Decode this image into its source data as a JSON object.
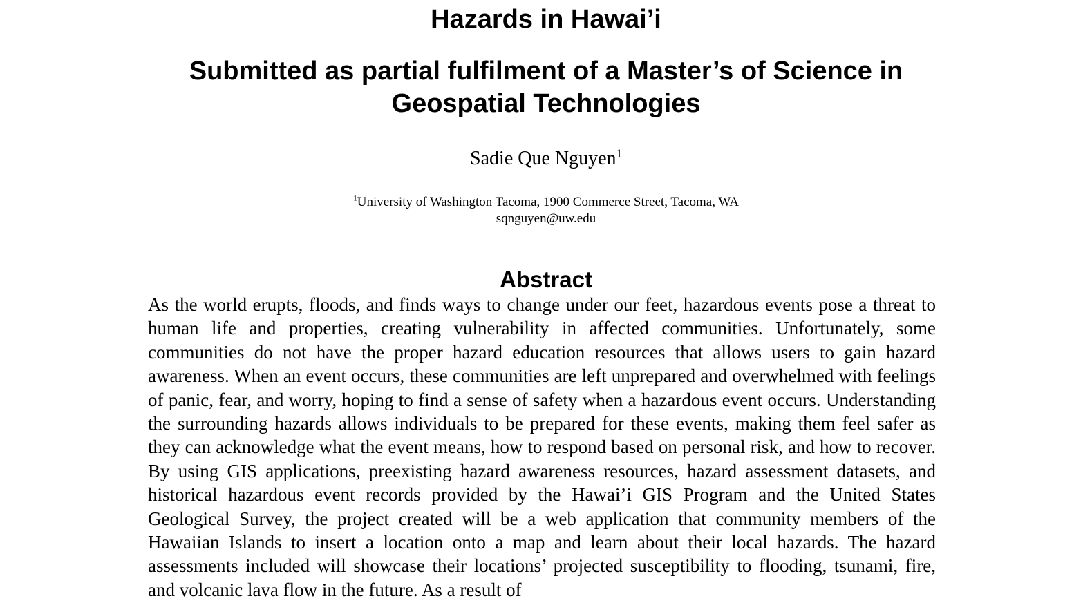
{
  "paper": {
    "title": "Hazards in Hawai’i",
    "subtitle_line1": "Submitted as partial fulfilment of a Master’s of Science in",
    "subtitle_line2": "Geospatial Technologies",
    "author": {
      "name": "Sadie Que Nguyen",
      "marker": "1"
    },
    "affiliation": {
      "marker": "1",
      "text": "University of Washington Tacoma, 1900 Commerce Street, Tacoma, WA",
      "email": "sqnguyen@uw.edu"
    },
    "abstract": {
      "heading": "Abstract",
      "body": "As the world erupts, floods, and finds ways to change under our feet, hazardous events pose a threat to human life and properties, creating vulnerability in affected communities. Unfortunately, some communities do not have the proper hazard education resources that allows users to gain hazard awareness. When an event occurs, these communities are left unprepared and overwhelmed with feelings of panic, fear, and worry, hoping to find a sense of safety when a hazardous event occurs. Understanding the surrounding hazards allows individuals to be prepared for these events, making them feel safer as they can acknowledge what the event means, how to respond based on personal risk, and how to recover. By using GIS applications, preexisting hazard awareness resources, hazard assessment datasets, and historical hazardous event records provided by the Hawai’i GIS Program and the United States Geological Survey, the project created will be a web application that community members of the Hawaiian Islands to insert a location onto a map and learn about their local hazards. The hazard assessments included will showcase their locations’ projected susceptibility to flooding, tsunami, fire, and volcanic lava flow in the future. As a result of"
    }
  }
}
